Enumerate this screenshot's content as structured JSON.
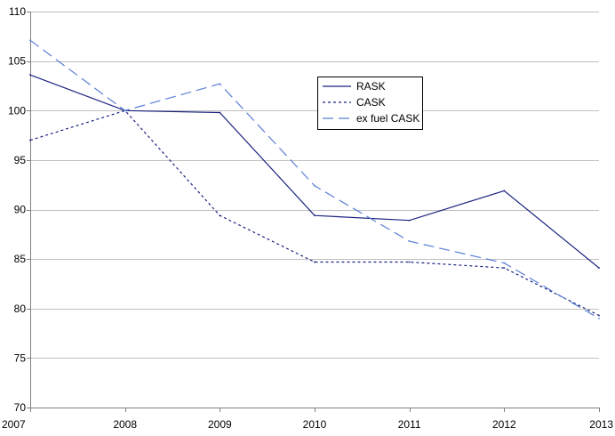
{
  "chart_data": {
    "type": "line",
    "title": "",
    "xlabel": "",
    "ylabel": "",
    "x": [
      "2007",
      "2008",
      "2009",
      "2010",
      "2011",
      "2012",
      "2013"
    ],
    "ylim": [
      70,
      110
    ],
    "yticks": [
      70,
      75,
      80,
      85,
      90,
      95,
      100,
      105,
      110
    ],
    "grid": "horizontal",
    "legend_position": "top-center",
    "series": [
      {
        "name": "RASK",
        "color": "#1a237e",
        "style": "solid",
        "values": [
          103.6,
          100.0,
          99.8,
          89.4,
          88.9,
          91.9,
          84.1
        ]
      },
      {
        "name": "CASK",
        "color": "#1a237e",
        "style": "dotted",
        "values": [
          97.0,
          100.0,
          89.4,
          84.7,
          84.7,
          84.1,
          79.3
        ]
      },
      {
        "name": "ex fuel CASK",
        "color": "#5b7fd6",
        "style": "dashed",
        "values": [
          107.1,
          100.0,
          102.7,
          92.4,
          86.8,
          84.6,
          79.0
        ]
      }
    ]
  }
}
